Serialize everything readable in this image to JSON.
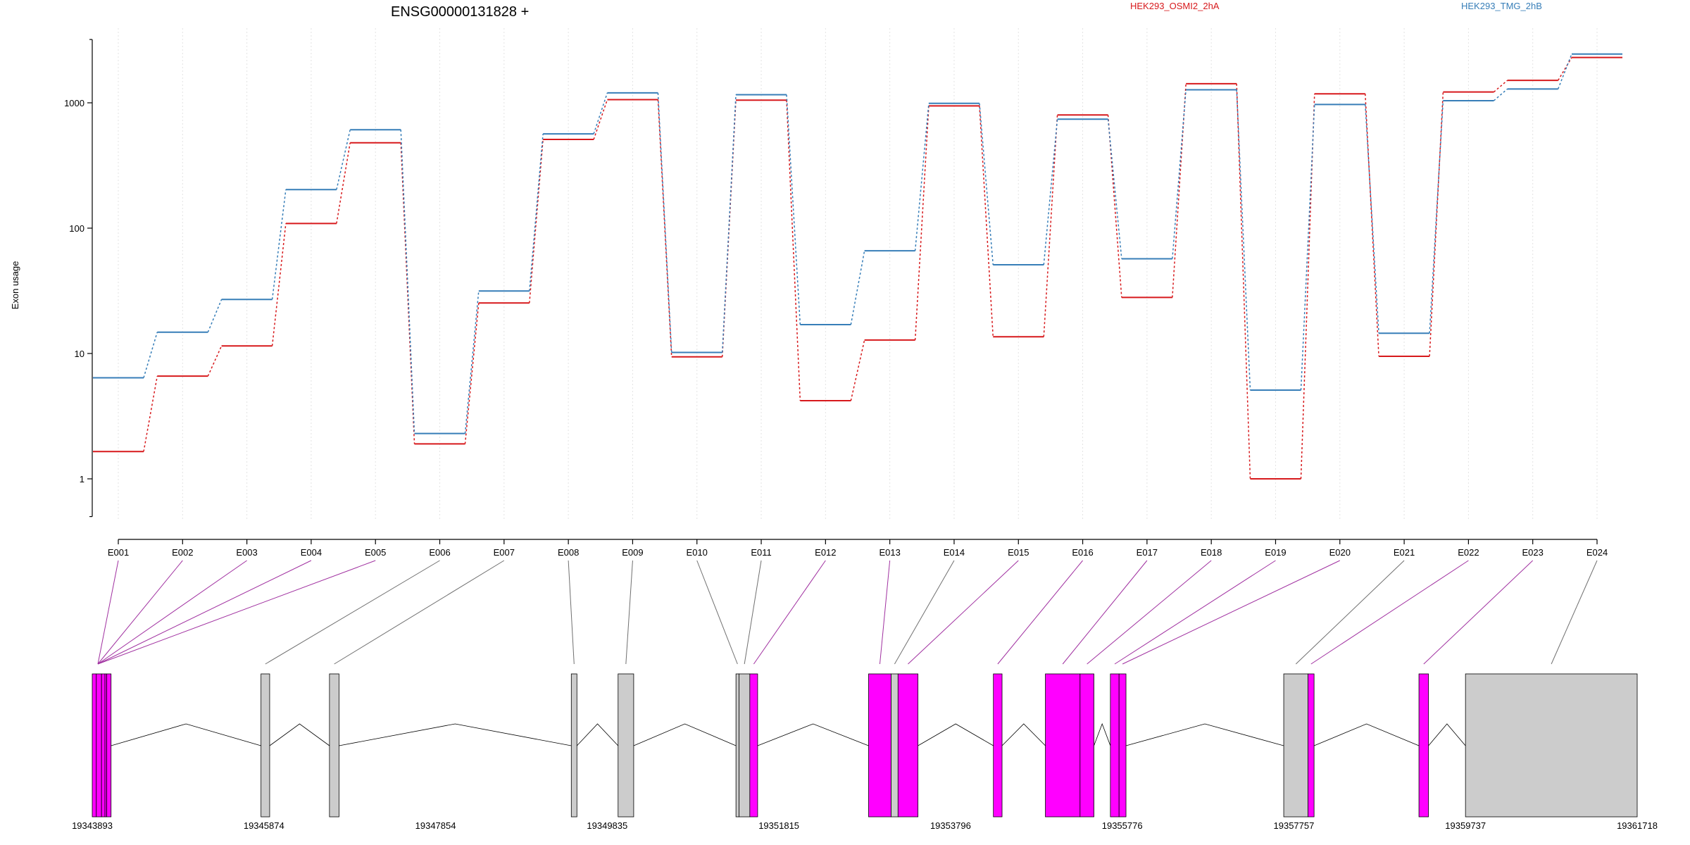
{
  "chart_data": {
    "type": "line",
    "title": "ENSG00000131828 +",
    "ylabel": "Exon usage",
    "xlabel": "",
    "y_scale": "log",
    "ylim": [
      0.5,
      3200
    ],
    "y_ticks": [
      1,
      10,
      100,
      1000
    ],
    "y_tick_labels": [
      "1",
      "10",
      "100",
      "1000"
    ],
    "grid": "vertical dotted lines at each exon",
    "legend_placement": "top",
    "categories": [
      "E001",
      "E002",
      "E003",
      "E004",
      "E005",
      "E006",
      "E007",
      "E008",
      "E009",
      "E010",
      "E011",
      "E012",
      "E013",
      "E014",
      "E015",
      "E016",
      "E017",
      "E018",
      "E019",
      "E020",
      "E021",
      "E022",
      "E023",
      "E024"
    ],
    "series": [
      {
        "name": "HEK293_OSMI2_2hA",
        "color": "#d7191c",
        "values": [
          1.65,
          6.6,
          11.5,
          109,
          480,
          1.9,
          25.3,
          510,
          1060,
          9.4,
          1050,
          4.2,
          12.8,
          945,
          13.6,
          800,
          28,
          1420,
          1.0,
          1180,
          9.5,
          1220,
          1510,
          2300
        ]
      },
      {
        "name": "HEK293_TMG_2hB",
        "color": "#377eb8",
        "values": [
          6.4,
          14.8,
          27,
          203,
          610,
          2.3,
          31.5,
          565,
          1200,
          10.2,
          1160,
          17,
          66,
          990,
          51,
          740,
          57,
          1270,
          5.1,
          970,
          14.5,
          1040,
          1290,
          2450
        ]
      }
    ],
    "genomic_axis": {
      "tick_labels": [
        "19343893",
        "19345874",
        "19347854",
        "19349835",
        "19351815",
        "19353796",
        "19355776",
        "19357757",
        "19359737",
        "19361718"
      ]
    },
    "exon_colors": {
      "significant": "#ff00ff",
      "not_significant": "#cccccc",
      "intron_line": "#000000"
    },
    "exon_significant": [
      true,
      true,
      true,
      true,
      true,
      false,
      false,
      false,
      false,
      false,
      false,
      true,
      true,
      false,
      true,
      true,
      true,
      true,
      true,
      true,
      false,
      true,
      true,
      false
    ]
  }
}
